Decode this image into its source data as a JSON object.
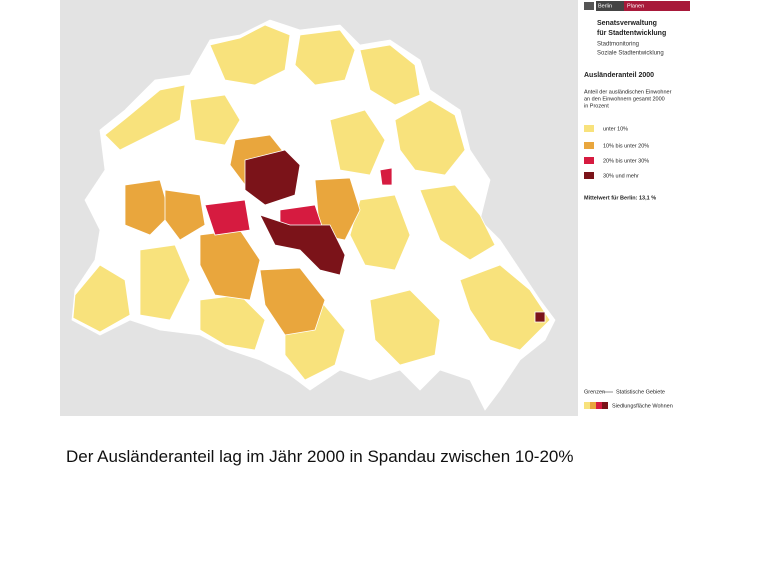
{
  "header": {
    "logo_left": "Berlin",
    "logo_right": "Planen",
    "agency": [
      "Senatsverwaltung",
      "für Stadtentwicklung"
    ],
    "department": [
      "Stadtmonitoring",
      "Soziale Stadtentwicklung"
    ]
  },
  "legend": {
    "title": "Ausländeranteil 2000",
    "subtitle": [
      "Anteil der ausländischen Einwohner",
      "an den Einwohnern gesamt 2000",
      "in Prozent"
    ],
    "classes": [
      "unter 10%",
      "10% bis unter 20%",
      "20% bis unter 30%",
      "30% und mehr"
    ],
    "mean": "Mittelwert für Berlin: 13,1 %",
    "boundaries": "Grenzen",
    "boundaries_type": "Statistische Gebiete",
    "settlement": "Siedlungsfläche Wohnen"
  },
  "caption": "Der Ausländeranteil lag im Jähr 2000 in Spandau zwischen 10-20%"
}
